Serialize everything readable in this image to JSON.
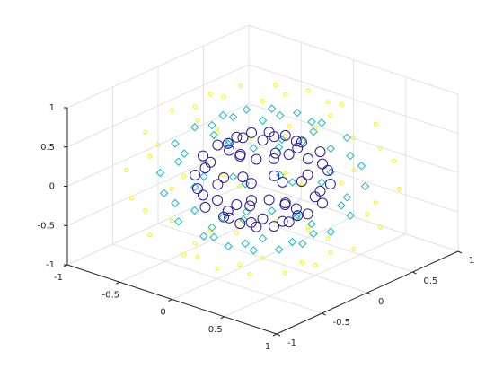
{
  "chart_data": {
    "type": "scatter3d",
    "xlim": [
      -1,
      1
    ],
    "ylim": [
      -1,
      1
    ],
    "zlim": [
      -1,
      1
    ],
    "xticks": [
      -1,
      -0.5,
      0,
      0.5,
      1
    ],
    "yticks": [
      -1,
      -0.5,
      0,
      0.5,
      1
    ],
    "zticks": [
      -1,
      -0.5,
      0,
      0.5,
      1
    ],
    "grid": true,
    "series": [
      {
        "color": "#f5f50a",
        "marker": "circle-small",
        "x": [
          0.5,
          0.43,
          0.25,
          0,
          -0.25,
          -0.43,
          -0.5,
          -0.43,
          -0.25,
          0,
          0.25,
          0.43,
          0.87,
          0.75,
          0.43,
          0,
          -0.43,
          -0.75,
          -0.87,
          -0.75,
          -0.43,
          0,
          0.43,
          0.75,
          1,
          0.87,
          0.5,
          0,
          -0.5,
          -0.87,
          -1,
          -0.87,
          -0.5,
          0,
          0.5,
          0.87,
          0.87,
          0.75,
          0.43,
          0,
          -0.43,
          -0.75,
          -0.87,
          -0.75,
          -0.43,
          0,
          0.43,
          0.75,
          0.5,
          0.43,
          0.25,
          0,
          -0.25,
          -0.43,
          -0.5,
          -0.43,
          -0.25,
          0,
          0.25,
          0.43,
          0,
          0
        ],
        "y": [
          0,
          0.25,
          0.43,
          0.5,
          0.43,
          0.25,
          0,
          -0.25,
          -0.43,
          -0.5,
          -0.43,
          -0.25,
          0,
          0.43,
          0.75,
          0.87,
          0.75,
          0.43,
          0,
          -0.43,
          -0.75,
          -0.87,
          -0.75,
          -0.43,
          0,
          0.5,
          0.87,
          1,
          0.87,
          0.5,
          0,
          -0.5,
          -0.87,
          -1,
          -0.87,
          -0.5,
          0,
          0.43,
          0.75,
          0.87,
          0.75,
          0.43,
          0,
          -0.43,
          -0.75,
          -0.87,
          -0.75,
          -0.43,
          0,
          0.25,
          0.43,
          0.5,
          0.43,
          0.25,
          0,
          -0.25,
          -0.43,
          -0.5,
          -0.43,
          -0.25,
          0,
          0
        ],
        "z": [
          -0.87,
          -0.87,
          -0.87,
          -0.87,
          -0.87,
          -0.87,
          -0.87,
          -0.87,
          -0.87,
          -0.87,
          -0.87,
          -0.87,
          -0.5,
          -0.5,
          -0.5,
          -0.5,
          -0.5,
          -0.5,
          -0.5,
          -0.5,
          -0.5,
          -0.5,
          -0.5,
          -0.5,
          0,
          0,
          0,
          0,
          0,
          0,
          0,
          0,
          0,
          0,
          0,
          0,
          0.5,
          0.5,
          0.5,
          0.5,
          0.5,
          0.5,
          0.5,
          0.5,
          0.5,
          0.5,
          0.5,
          0.5,
          0.87,
          0.87,
          0.87,
          0.87,
          0.87,
          0.87,
          0.87,
          0.87,
          0.87,
          0.87,
          0.87,
          0.87,
          -1,
          1
        ]
      },
      {
        "color": "#17b8c4",
        "marker": "diamond",
        "x": [
          0.38,
          0.32,
          0.19,
          0,
          -0.19,
          -0.32,
          -0.38,
          -0.32,
          -0.19,
          0,
          0.19,
          0.32,
          0.65,
          0.56,
          0.32,
          0,
          -0.32,
          -0.56,
          -0.65,
          -0.56,
          -0.32,
          0,
          0.32,
          0.56,
          0.75,
          0.65,
          0.38,
          0,
          -0.38,
          -0.65,
          -0.75,
          -0.65,
          -0.38,
          0,
          0.38,
          0.65,
          0.65,
          0.56,
          0.32,
          0,
          -0.32,
          -0.56,
          -0.65,
          -0.56,
          -0.32,
          0,
          0.32,
          0.56,
          0.38,
          0.32,
          0.19,
          0,
          -0.19,
          -0.32,
          -0.38,
          -0.32,
          -0.19,
          0,
          0.19,
          0.32,
          0,
          0
        ],
        "y": [
          0,
          0.19,
          0.32,
          0.38,
          0.32,
          0.19,
          0,
          -0.19,
          -0.32,
          -0.38,
          -0.32,
          -0.19,
          0,
          0.32,
          0.56,
          0.65,
          0.56,
          0.32,
          0,
          -0.32,
          -0.56,
          -0.65,
          -0.56,
          -0.32,
          0,
          0.38,
          0.65,
          0.75,
          0.65,
          0.38,
          0,
          -0.38,
          -0.65,
          -0.75,
          -0.65,
          -0.38,
          0,
          0.32,
          0.56,
          0.65,
          0.56,
          0.32,
          0,
          -0.32,
          -0.56,
          -0.65,
          -0.56,
          -0.32,
          0,
          0.19,
          0.32,
          0.38,
          0.32,
          0.19,
          0,
          -0.19,
          -0.32,
          -0.38,
          -0.32,
          -0.19,
          0,
          0
        ],
        "z": [
          -0.65,
          -0.65,
          -0.65,
          -0.65,
          -0.65,
          -0.65,
          -0.65,
          -0.65,
          -0.65,
          -0.65,
          -0.65,
          -0.65,
          -0.38,
          -0.38,
          -0.38,
          -0.38,
          -0.38,
          -0.38,
          -0.38,
          -0.38,
          -0.38,
          -0.38,
          -0.38,
          -0.38,
          0,
          0,
          0,
          0,
          0,
          0,
          0,
          0,
          0,
          0,
          0,
          0,
          0.38,
          0.38,
          0.38,
          0.38,
          0.38,
          0.38,
          0.38,
          0.38,
          0.38,
          0.38,
          0.38,
          0.38,
          0.65,
          0.65,
          0.65,
          0.65,
          0.65,
          0.65,
          0.65,
          0.65,
          0.65,
          0.65,
          0.65,
          0.65,
          -0.75,
          0.75
        ]
      },
      {
        "color": "#2a1a96",
        "marker": "circle",
        "x": [
          0.25,
          0.22,
          0.13,
          0,
          -0.13,
          -0.22,
          -0.25,
          -0.22,
          -0.13,
          0,
          0.13,
          0.22,
          0.43,
          0.38,
          0.22,
          0,
          -0.22,
          -0.38,
          -0.43,
          -0.38,
          -0.22,
          0,
          0.22,
          0.38,
          0.5,
          0.43,
          0.25,
          0,
          -0.25,
          -0.43,
          -0.5,
          -0.43,
          -0.25,
          0,
          0.25,
          0.43,
          0.43,
          0.38,
          0.22,
          0,
          -0.22,
          -0.38,
          -0.43,
          -0.38,
          -0.22,
          0,
          0.22,
          0.38,
          0.25,
          0.22,
          0.13,
          0,
          -0.13,
          -0.22,
          -0.25,
          -0.22,
          -0.13,
          0,
          0.13,
          0.22,
          0,
          0
        ],
        "y": [
          0,
          0.13,
          0.22,
          0.25,
          0.22,
          0.13,
          0,
          -0.13,
          -0.22,
          -0.25,
          -0.22,
          -0.13,
          0,
          0.22,
          0.38,
          0.43,
          0.38,
          0.22,
          0,
          -0.22,
          -0.38,
          -0.43,
          -0.38,
          -0.22,
          0,
          0.25,
          0.43,
          0.5,
          0.43,
          0.25,
          0,
          -0.25,
          -0.43,
          -0.5,
          -0.43,
          -0.25,
          0,
          0.22,
          0.38,
          0.43,
          0.38,
          0.22,
          0,
          -0.22,
          -0.38,
          -0.43,
          -0.38,
          -0.22,
          0,
          0.13,
          0.22,
          0.25,
          0.22,
          0.13,
          0,
          -0.13,
          -0.22,
          -0.25,
          -0.22,
          -0.13,
          0,
          0
        ],
        "z": [
          -0.43,
          -0.43,
          -0.43,
          -0.43,
          -0.43,
          -0.43,
          -0.43,
          -0.43,
          -0.43,
          -0.43,
          -0.43,
          -0.43,
          -0.25,
          -0.25,
          -0.25,
          -0.25,
          -0.25,
          -0.25,
          -0.25,
          -0.25,
          -0.25,
          -0.25,
          -0.25,
          -0.25,
          0,
          0,
          0,
          0,
          0,
          0,
          0,
          0,
          0,
          0,
          0,
          0,
          0.25,
          0.25,
          0.25,
          0.25,
          0.25,
          0.25,
          0.25,
          0.25,
          0.25,
          0.25,
          0.25,
          0.25,
          0.43,
          0.43,
          0.43,
          0.43,
          0.43,
          0.43,
          0.43,
          0.43,
          0.43,
          0.43,
          0.43,
          0.43,
          -0.5,
          0.5
        ]
      }
    ]
  }
}
